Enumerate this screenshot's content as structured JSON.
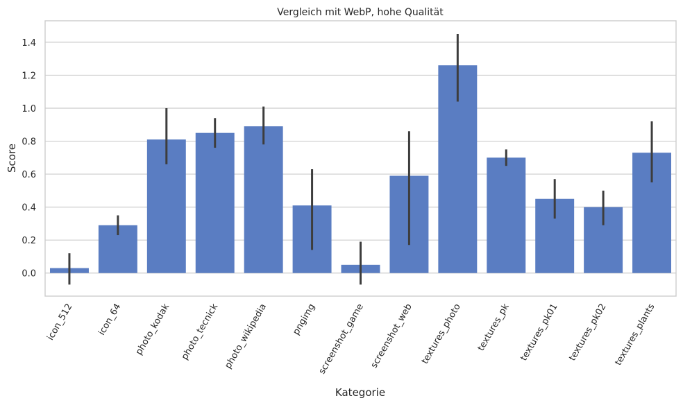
{
  "chart_data": {
    "type": "bar",
    "title": "Vergleich mit WebP, hohe Qualität",
    "xlabel": "Kategorie",
    "ylabel": "Score",
    "ylim": [
      -0.14,
      1.53
    ],
    "yticks": [
      0.0,
      0.2,
      0.4,
      0.6,
      0.8,
      1.0,
      1.2,
      1.4
    ],
    "ytick_labels": [
      "0.0",
      "0.2",
      "0.4",
      "0.6",
      "0.8",
      "1.0",
      "1.2",
      "1.4"
    ],
    "grid": true,
    "bar_color": "#5a7dc2",
    "errorbar_color": "#3d3d3d",
    "categories": [
      "icon_512",
      "icon_64",
      "photo_kodak",
      "photo_tecnick",
      "photo_wikipedia",
      "pngimg",
      "screenshot_game",
      "screenshot_web",
      "textures_photo",
      "textures_pk",
      "textures_pk01",
      "textures_pk02",
      "textures_plants"
    ],
    "values": [
      0.03,
      0.29,
      0.81,
      0.85,
      0.89,
      0.41,
      0.05,
      0.59,
      1.26,
      0.7,
      0.45,
      0.4,
      0.73
    ],
    "error_low": [
      -0.07,
      0.23,
      0.66,
      0.76,
      0.78,
      0.14,
      -0.07,
      0.17,
      1.04,
      0.65,
      0.33,
      0.29,
      0.55
    ],
    "error_high": [
      0.12,
      0.35,
      1.0,
      0.94,
      1.01,
      0.63,
      0.19,
      0.86,
      1.45,
      0.75,
      0.57,
      0.5,
      0.92
    ]
  }
}
